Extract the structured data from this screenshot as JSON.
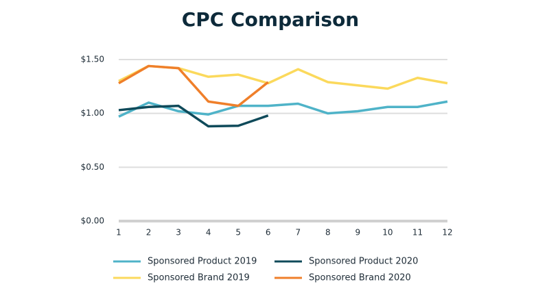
{
  "chart_data": {
    "type": "line",
    "title": "CPC Comparison",
    "categories": [
      "1",
      "2",
      "3",
      "4",
      "5",
      "6",
      "7",
      "8",
      "9",
      "10",
      "11",
      "12"
    ],
    "series": [
      {
        "name": "Sponsored Product 2019",
        "color": "#4fb3c8",
        "values": [
          0.97,
          1.1,
          1.02,
          0.99,
          1.07,
          1.07,
          1.09,
          1.0,
          1.02,
          1.06,
          1.06,
          1.11
        ]
      },
      {
        "name": "Sponsored Product 2020",
        "color": "#0f4a5a",
        "values": [
          1.03,
          1.06,
          1.07,
          0.88,
          0.885,
          0.98,
          null,
          null,
          null,
          null,
          null,
          null
        ]
      },
      {
        "name": "Sponsored Brand 2019",
        "color": "#fbd95c",
        "values": [
          1.3,
          1.44,
          1.42,
          1.34,
          1.36,
          1.28,
          1.41,
          1.29,
          1.26,
          1.23,
          1.33,
          1.28
        ]
      },
      {
        "name": "Sponsored Brand 2020",
        "color": "#ef7f2a",
        "values": [
          1.28,
          1.44,
          1.42,
          1.11,
          1.07,
          1.29,
          null,
          null,
          null,
          null,
          null,
          null
        ]
      }
    ],
    "ylim": [
      0,
      1.5
    ],
    "yticks": [
      {
        "value": 0,
        "label": "$0.00"
      },
      {
        "value": 0.5,
        "label": "$0.50"
      },
      {
        "value": 1.0,
        "label": "$1.00"
      },
      {
        "value": 1.5,
        "label": "$1.50"
      }
    ],
    "grid": true,
    "legend": "bottom"
  }
}
